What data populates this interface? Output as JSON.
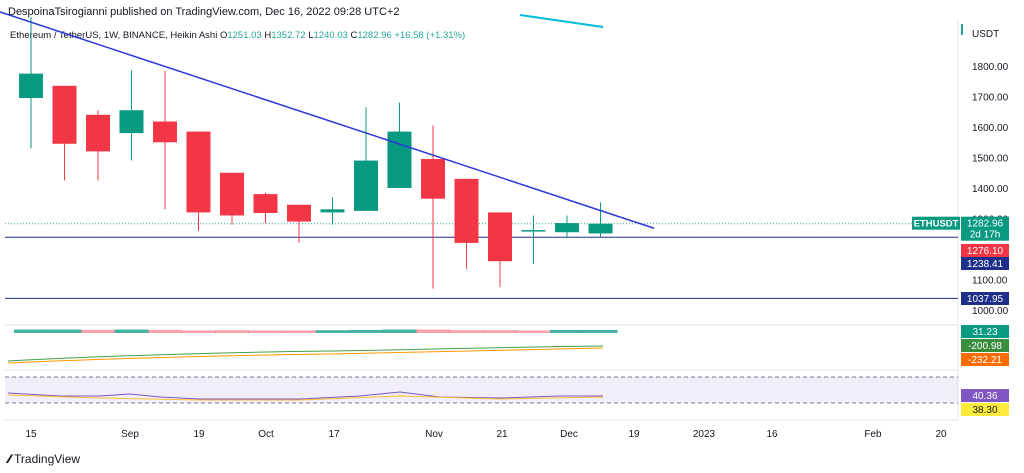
{
  "header": {
    "publisher": "DespoinaTsirogianni published on TradingView.com, Dec 16, 2022 09:28 UTC+2"
  },
  "legend": {
    "symbol": "Ethereum / TetherUS, 1W, BINANCE, Heikin Ashi",
    "o_label": "O",
    "o": "1251.03",
    "h_label": "H",
    "h": "1352.72",
    "l_label": "L",
    "l": "1240.03",
    "c_label": "C",
    "c": "1282.96",
    "change": "+16.58 (+1.31%)"
  },
  "footer": {
    "brand": "TradingView",
    "logo_icon": "tradingview-logo-icon"
  },
  "colors": {
    "up": "#26a69a",
    "up_body": "#089981",
    "down": "#f23645",
    "trend": "#2b37d6",
    "hline": "#1e2e8a",
    "sma_green": "#43a047",
    "sma_orange": "#ff9800",
    "rsi": "#7e57c2"
  },
  "chart_data": {
    "type": "candlestick",
    "price_axis": {
      "currency": "USDT",
      "ticks": [
        "1800.00",
        "1700.00",
        "1600.00",
        "1500.00",
        "1400.00",
        "1300.00",
        "1100.00",
        "1000.00"
      ],
      "tick_values": [
        1800,
        1700,
        1600,
        1500,
        1400,
        1300,
        1100,
        1000
      ]
    },
    "time_axis": {
      "labels": [
        "15",
        "Sep",
        "19",
        "Oct",
        "17",
        "Nov",
        "21",
        "Dec",
        "19",
        "2023",
        "16",
        "Feb",
        "20"
      ]
    },
    "candles": [
      {
        "o": 1695,
        "h": 1960,
        "l": 1530,
        "c": 1775
      },
      {
        "o": 1735,
        "h": 1735,
        "l": 1425,
        "c": 1545
      },
      {
        "o": 1640,
        "h": 1655,
        "l": 1425,
        "c": 1520
      },
      {
        "o": 1580,
        "h": 1785,
        "l": 1490,
        "c": 1655
      },
      {
        "o": 1618,
        "h": 1785,
        "l": 1330,
        "c": 1550
      },
      {
        "o": 1585,
        "h": 1585,
        "l": 1260,
        "c": 1320
      },
      {
        "o": 1450,
        "h": 1450,
        "l": 1280,
        "c": 1310
      },
      {
        "o": 1380,
        "h": 1385,
        "l": 1285,
        "c": 1318
      },
      {
        "o": 1345,
        "h": 1345,
        "l": 1220,
        "c": 1290
      },
      {
        "o": 1320,
        "h": 1370,
        "l": 1280,
        "c": 1330
      },
      {
        "o": 1325,
        "h": 1665,
        "l": 1325,
        "c": 1490
      },
      {
        "o": 1400,
        "h": 1680,
        "l": 1400,
        "c": 1585
      },
      {
        "o": 1495,
        "h": 1605,
        "l": 1070,
        "c": 1365
      },
      {
        "o": 1430,
        "h": 1430,
        "l": 1135,
        "c": 1220
      },
      {
        "o": 1320,
        "h": 1320,
        "l": 1075,
        "c": 1160
      },
      {
        "o": 1258,
        "h": 1310,
        "l": 1150,
        "c": 1262
      },
      {
        "o": 1255,
        "h": 1310,
        "l": 1240,
        "c": 1285
      },
      {
        "o": 1251.03,
        "h": 1352.72,
        "l": 1240.03,
        "c": 1282.96
      }
    ],
    "trendline": [
      {
        "index": -1,
        "price": 1980
      },
      {
        "index": 18.6,
        "price": 1268
      }
    ],
    "horizontal_lines": [
      {
        "price": 1238.41,
        "label": "1238.41"
      },
      {
        "price": 1037.95,
        "label": "1037.95"
      }
    ],
    "price_labels": [
      {
        "text": "ETHUSDT",
        "kind": "symbol-tag",
        "price": 1282.96
      },
      {
        "text": "1282.96",
        "kind": "last-price",
        "price": 1282.96
      },
      {
        "text": "2d 17h",
        "kind": "countdown",
        "price": 1282.96
      },
      {
        "text": "1276.10",
        "kind": "red-tag",
        "price": 1276.1
      },
      {
        "text": "1238.41",
        "kind": "line-tag",
        "price": 1238.41
      },
      {
        "text": "1037.95",
        "kind": "line-tag",
        "price": 1037.95
      }
    ],
    "indicators": {
      "volume": {
        "label": "31.23",
        "bars": [
          0.62,
          0.62,
          0.52,
          0.62,
          0.52,
          0.38,
          0.45,
          0.38,
          0.38,
          0.45,
          0.52,
          0.62,
          0.62,
          0.45,
          0.45,
          0.38,
          0.52,
          0.52
        ],
        "dir": [
          "up",
          "up",
          "down",
          "up",
          "down",
          "down",
          "down",
          "down",
          "down",
          "up",
          "up",
          "up",
          "down",
          "down",
          "down",
          "down",
          "up",
          "up"
        ]
      },
      "sma": {
        "label_a": "-200.98",
        "label_b": "-232.21"
      },
      "rsi": {
        "label_a": "40.36",
        "label_b": "38.30"
      }
    }
  }
}
